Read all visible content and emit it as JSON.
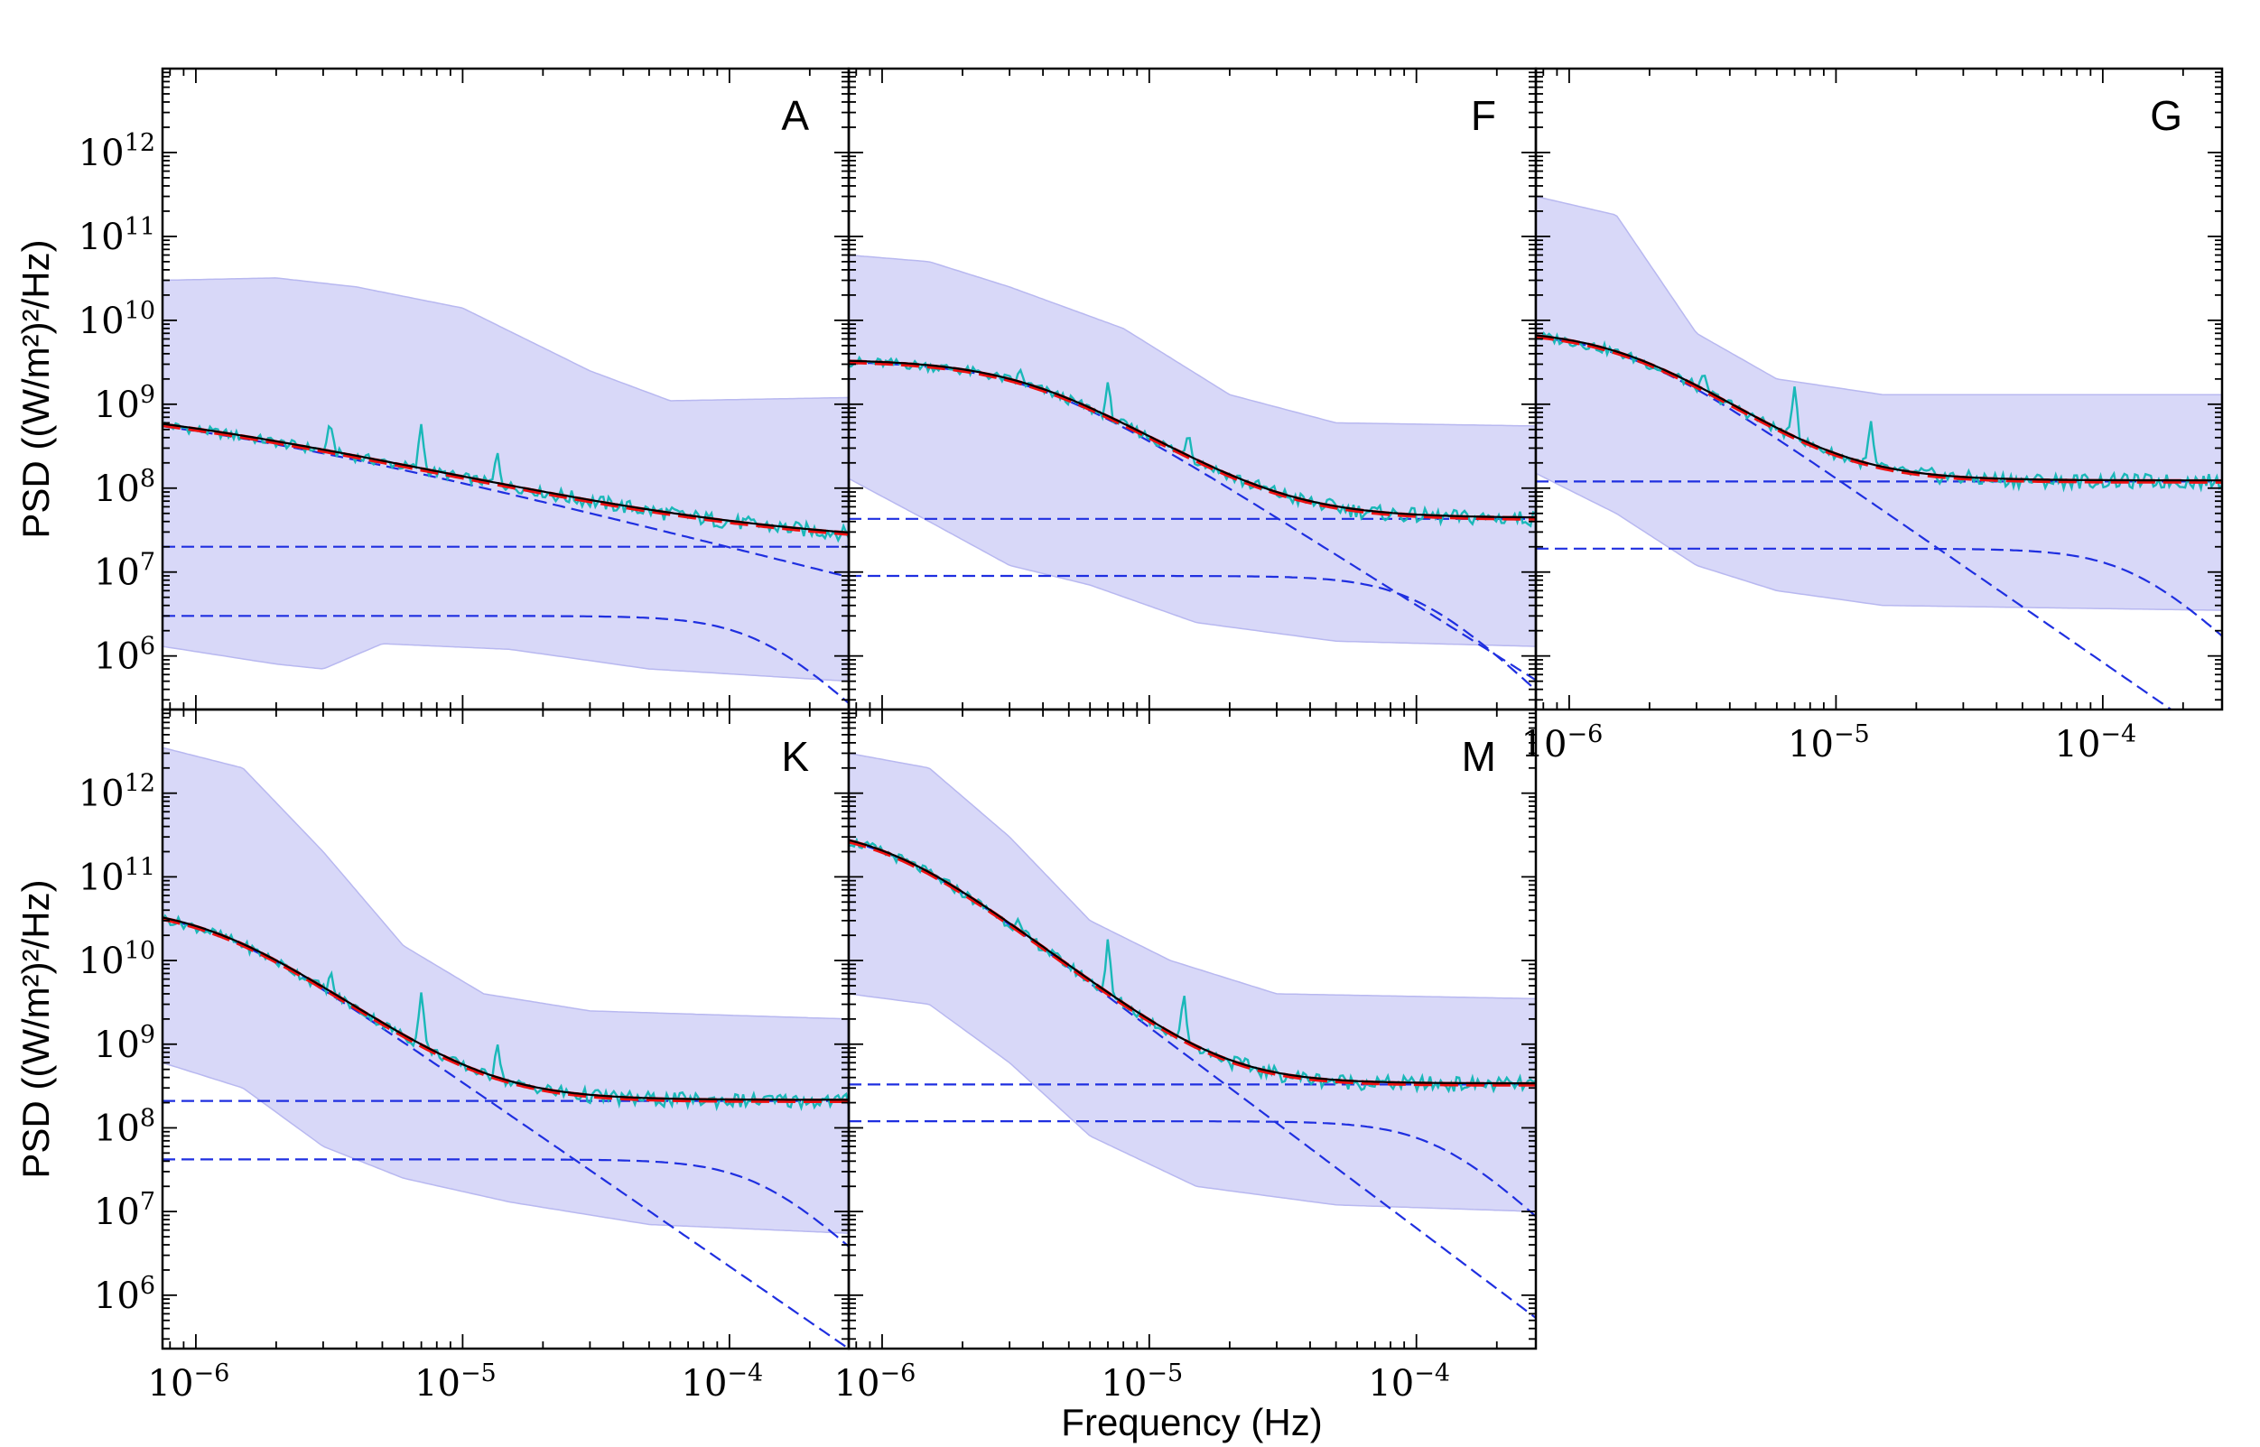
{
  "chart_data": {
    "type": "line",
    "xlabel": "Frequency (Hz)",
    "ylabel": "PSD  ((W/m²)²/Hz)",
    "xscale": "log",
    "yscale": "log",
    "xlim": [
      7.5e-07,
      0.00028
    ],
    "ylim": [
      230000,
      10000000000000.0
    ],
    "x_ticks": [
      {
        "value": 1e-06,
        "label": "10",
        "exp": "−6"
      },
      {
        "value": 1e-05,
        "label": "10",
        "exp": "−5"
      },
      {
        "value": 0.0001,
        "label": "10",
        "exp": "−4"
      }
    ],
    "y_ticks": [
      {
        "value": 1000000.0,
        "label": "10",
        "exp": "6"
      },
      {
        "value": 10000000.0,
        "label": "10",
        "exp": "7"
      },
      {
        "value": 100000000.0,
        "label": "10",
        "exp": "8"
      },
      {
        "value": 1000000000.0,
        "label": "10",
        "exp": "9"
      },
      {
        "value": 10000000000.0,
        "label": "10",
        "exp": "10"
      },
      {
        "value": 100000000000.0,
        "label": "10",
        "exp": "11"
      },
      {
        "value": 1000000000000.0,
        "label": "10",
        "exp": "12"
      }
    ],
    "colors": {
      "observed": "#1ab8b8",
      "fit": "#000000",
      "model": "#ee1111",
      "component": "#1f2fe0",
      "band": "#d8d8f8",
      "band_edge": "#b8b8f0"
    },
    "panels": [
      {
        "label": "A",
        "band_upper": [
          [
            7.5e-07,
            30000000000.0
          ],
          [
            2e-06,
            32000000000.0
          ],
          [
            4e-06,
            25000000000.0
          ],
          [
            1e-05,
            14000000000.0
          ],
          [
            3e-05,
            2500000000.0
          ],
          [
            6e-05,
            1100000000.0
          ],
          [
            0.00028,
            1200000000.0
          ]
        ],
        "band_lower": [
          [
            7.5e-07,
            1300000.0
          ],
          [
            2e-06,
            800000.0
          ],
          [
            3e-06,
            700000.0
          ],
          [
            5e-06,
            1400000.0
          ],
          [
            1.5e-05,
            1200000.0
          ],
          [
            5e-05,
            700000.0
          ],
          [
            0.00028,
            500000.0
          ]
        ],
        "fit": {
          "A1": 3000000.0,
          "f1": 0.00013,
          "A2": 1200000000.0,
          "f2": 6e-07,
          "alpha": 0.8,
          "N": 20000000.0
        },
        "spikes": [
          [
            3.2e-06,
            2.2
          ],
          [
            7e-06,
            3.5
          ],
          [
            1.35e-05,
            2.3
          ]
        ]
      },
      {
        "label": "F",
        "band_upper": [
          [
            7.5e-07,
            60000000000.0
          ],
          [
            1.5e-06,
            50000000000.0
          ],
          [
            3e-06,
            25000000000.0
          ],
          [
            8e-06,
            8000000000.0
          ],
          [
            2e-05,
            1300000000.0
          ],
          [
            5e-05,
            600000000.0
          ],
          [
            0.00028,
            550000000.0
          ]
        ],
        "band_lower": [
          [
            7.5e-07,
            130000000.0
          ],
          [
            1.5e-06,
            40000000.0
          ],
          [
            3e-06,
            12000000.0
          ],
          [
            6e-06,
            7000000.0
          ],
          [
            1.5e-05,
            2500000.0
          ],
          [
            5e-05,
            1500000.0
          ],
          [
            0.00028,
            1300000.0
          ]
        ],
        "fit": {
          "A1": 9000000.0,
          "f1": 0.0001,
          "A2": 3300000000.0,
          "f2": 3.5e-06,
          "alpha": 2.0,
          "N": 43000000.0
        },
        "spikes": [
          [
            3.3e-06,
            1.35
          ],
          [
            7e-06,
            2.3
          ],
          [
            1.4e-05,
            2.0
          ]
        ]
      },
      {
        "label": "G",
        "band_upper": [
          [
            7.5e-07,
            300000000000.0
          ],
          [
            1.5e-06,
            180000000000.0
          ],
          [
            3e-06,
            7000000000.0
          ],
          [
            6e-06,
            2000000000.0
          ],
          [
            1.5e-05,
            1300000000.0
          ],
          [
            0.00028,
            1300000000.0
          ]
        ],
        "band_lower": [
          [
            7.5e-07,
            150000000.0
          ],
          [
            1.5e-06,
            50000000.0
          ],
          [
            3e-06,
            12000000.0
          ],
          [
            6e-06,
            6000000.0
          ],
          [
            1.5e-05,
            4000000.0
          ],
          [
            0.00028,
            3500000.0
          ]
        ],
        "fit": {
          "A1": 19000000.0,
          "f1": 0.00013,
          "A2": 7500000000.0,
          "f2": 1.6e-06,
          "alpha": 2.2,
          "N": 120000000.0
        },
        "spikes": [
          [
            3.2e-06,
            1.4
          ],
          [
            7e-06,
            4.5
          ],
          [
            1.35e-05,
            3.2
          ]
        ]
      },
      {
        "label": "K",
        "band_upper": [
          [
            7.5e-07,
            3500000000000.0
          ],
          [
            1.5e-06,
            2000000000000.0
          ],
          [
            3e-06,
            200000000000.0
          ],
          [
            6e-06,
            15000000000.0
          ],
          [
            1.2e-05,
            4000000000.0
          ],
          [
            3e-05,
            2500000000.0
          ],
          [
            0.00028,
            2000000000.0
          ]
        ],
        "band_lower": [
          [
            7.5e-07,
            600000000.0
          ],
          [
            1.5e-06,
            300000000.0
          ],
          [
            3e-06,
            60000000.0
          ],
          [
            6e-06,
            25000000.0
          ],
          [
            1.5e-05,
            13000000.0
          ],
          [
            5e-05,
            7000000.0
          ],
          [
            0.00028,
            5500000.0
          ]
        ],
        "fit": {
          "A1": 42000000.0,
          "f1": 0.00013,
          "A2": 45000000000.0,
          "f2": 1.1e-06,
          "alpha": 2.2,
          "N": 210000000.0
        },
        "spikes": [
          [
            3.2e-06,
            1.6
          ],
          [
            7e-06,
            4.8
          ],
          [
            1.35e-05,
            2.9
          ]
        ]
      },
      {
        "label": "M",
        "band_upper": [
          [
            7.5e-07,
            3000000000000.0
          ],
          [
            1.5e-06,
            2000000000000.0
          ],
          [
            3e-06,
            300000000000.0
          ],
          [
            6e-06,
            30000000000.0
          ],
          [
            1.2e-05,
            10000000000.0
          ],
          [
            3e-05,
            4000000000.0
          ],
          [
            0.00028,
            3500000000.0
          ]
        ],
        "band_lower": [
          [
            7.5e-07,
            4000000000.0
          ],
          [
            1.5e-06,
            3000000000.0
          ],
          [
            3e-06,
            600000000.0
          ],
          [
            6e-06,
            80000000.0
          ],
          [
            1.5e-05,
            20000000.0
          ],
          [
            5e-05,
            12000000.0
          ],
          [
            0.00028,
            10000000.0
          ]
        ],
        "fit": {
          "A1": 120000000.0,
          "f1": 0.00012,
          "A2": 400000000000.0,
          "f2": 1e-06,
          "alpha": 2.4,
          "N": 330000000.0
        },
        "spikes": [
          [
            3.2e-06,
            1.3
          ],
          [
            7e-06,
            4.2
          ],
          [
            1.35e-05,
            3.6
          ]
        ]
      }
    ]
  }
}
